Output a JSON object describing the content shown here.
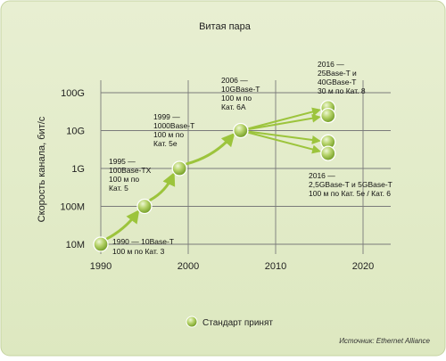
{
  "title": "Витая пара",
  "ylabel": "Скорость канала, бит/с",
  "legend_label": "Стандарт принят",
  "source": "Источник: Ethernet Alliance",
  "colors": {
    "panel": "#dfe9c4",
    "grid": "#7a7a7a",
    "bubble": "#a8c95a",
    "arrow": "#9cc43c"
  },
  "chart_data": {
    "type": "scatter",
    "title": "Витая пара",
    "xlabel": "",
    "ylabel": "Скорость канала, бит/с",
    "xlim": [
      1990,
      2020
    ],
    "x_ticks": [
      "1990",
      "2000",
      "2010",
      "2020"
    ],
    "y_ticks": [
      "10M",
      "100M",
      "1G",
      "10G",
      "100G"
    ],
    "grid": true,
    "legend": "bottom-center",
    "points": [
      {
        "year": 1990,
        "speed": "10M"
      },
      {
        "year": 1995,
        "speed": "100M"
      },
      {
        "year": 1999,
        "speed": "1G"
      },
      {
        "year": 2006,
        "speed": "10G"
      },
      {
        "year": 2016,
        "speed": "40G"
      },
      {
        "year": 2016,
        "speed": "25G"
      },
      {
        "year": 2016,
        "speed": "5G"
      },
      {
        "year": 2016,
        "speed": "2.5G"
      }
    ],
    "annotations": [
      {
        "lines": [
          "1990 — 10Base-T",
          "100 м по Кат. 3"
        ]
      },
      {
        "lines": [
          "1995 —",
          "100Base-TX",
          "100 м по",
          "Кат. 5"
        ]
      },
      {
        "lines": [
          "1999 —",
          "1000Base-T",
          "100 м по",
          "Кат. 5е"
        ]
      },
      {
        "lines": [
          "2006 —",
          "10GBase-T",
          "100 м по",
          "Кат. 6А"
        ]
      },
      {
        "lines": [
          "2016 —",
          "25Base-T и",
          "40GBase-T",
          "30 м по Кат. 8"
        ]
      },
      {
        "lines": [
          "2016 —",
          "2,5GBase-T и 5GBase-T",
          "100 м по Кат. 5е / Кат. 6"
        ]
      }
    ]
  }
}
